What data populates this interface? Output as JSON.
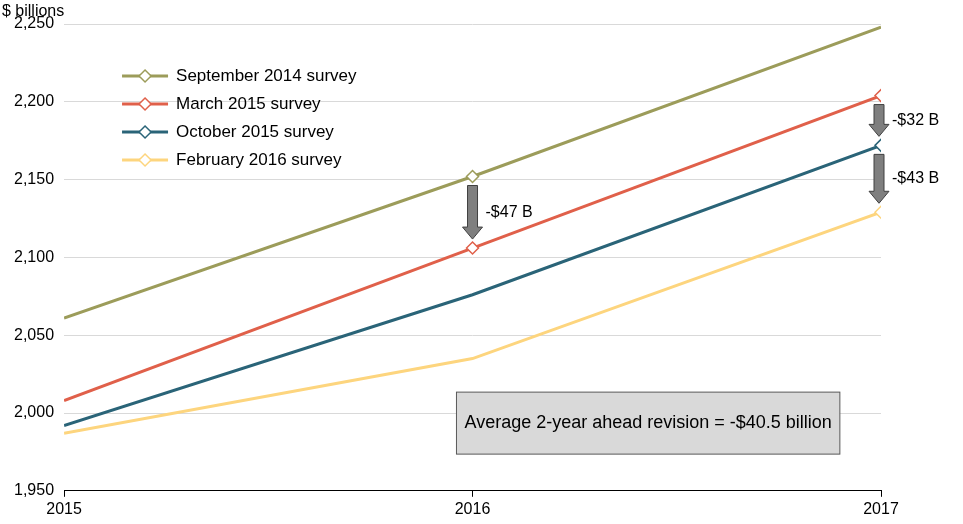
{
  "chart_data": {
    "type": "line",
    "y_label": "$ billions",
    "x": [
      2015,
      2016,
      2017
    ],
    "series": [
      {
        "name": "September 2014 survey",
        "color": "#9c9c5a",
        "marker": "diamond",
        "values": [
          2061,
          2152,
          2248
        ]
      },
      {
        "name": "March 2015 survey",
        "color": "#e0604a",
        "marker": "diamond",
        "values": [
          2008,
          2106,
          2204
        ]
      },
      {
        "name": "October 2015 survey",
        "color": "#2a6478",
        "marker": "diamond",
        "values": [
          1992,
          2076,
          2172
        ]
      },
      {
        "name": "February 2016 survey",
        "color": "#fdd57e",
        "marker": "diamond",
        "values": [
          1987,
          2035,
          2129
        ]
      }
    ],
    "xlim": [
      2015,
      2017
    ],
    "xticks": [
      2015,
      2016,
      2017
    ],
    "ylim": [
      1950,
      2250
    ],
    "yticks": [
      {
        "value": 1950,
        "label": "1,950"
      },
      {
        "value": 2000,
        "label": "2,000"
      },
      {
        "value": 2050,
        "label": "2,050"
      },
      {
        "value": 2100,
        "label": "2,100"
      },
      {
        "value": 2150,
        "label": "2,150"
      },
      {
        "value": 2200,
        "label": "2,200"
      },
      {
        "value": 2250,
        "label": "2,250"
      }
    ],
    "grid": true,
    "legend": "upper left",
    "annotations": [
      {
        "x": 2016,
        "from": "September 2014 survey",
        "to": "March 2015 survey",
        "text": "-$47 B"
      },
      {
        "x": 2017,
        "from": "March 2015 survey",
        "to": "October 2015 survey",
        "text": "-$32 B"
      },
      {
        "x": 2017,
        "from": "October 2015 survey",
        "to": "February 2016 survey",
        "text": "-$43 B"
      }
    ],
    "text_box": "Average 2-year ahead revision = -$40.5 billion"
  }
}
